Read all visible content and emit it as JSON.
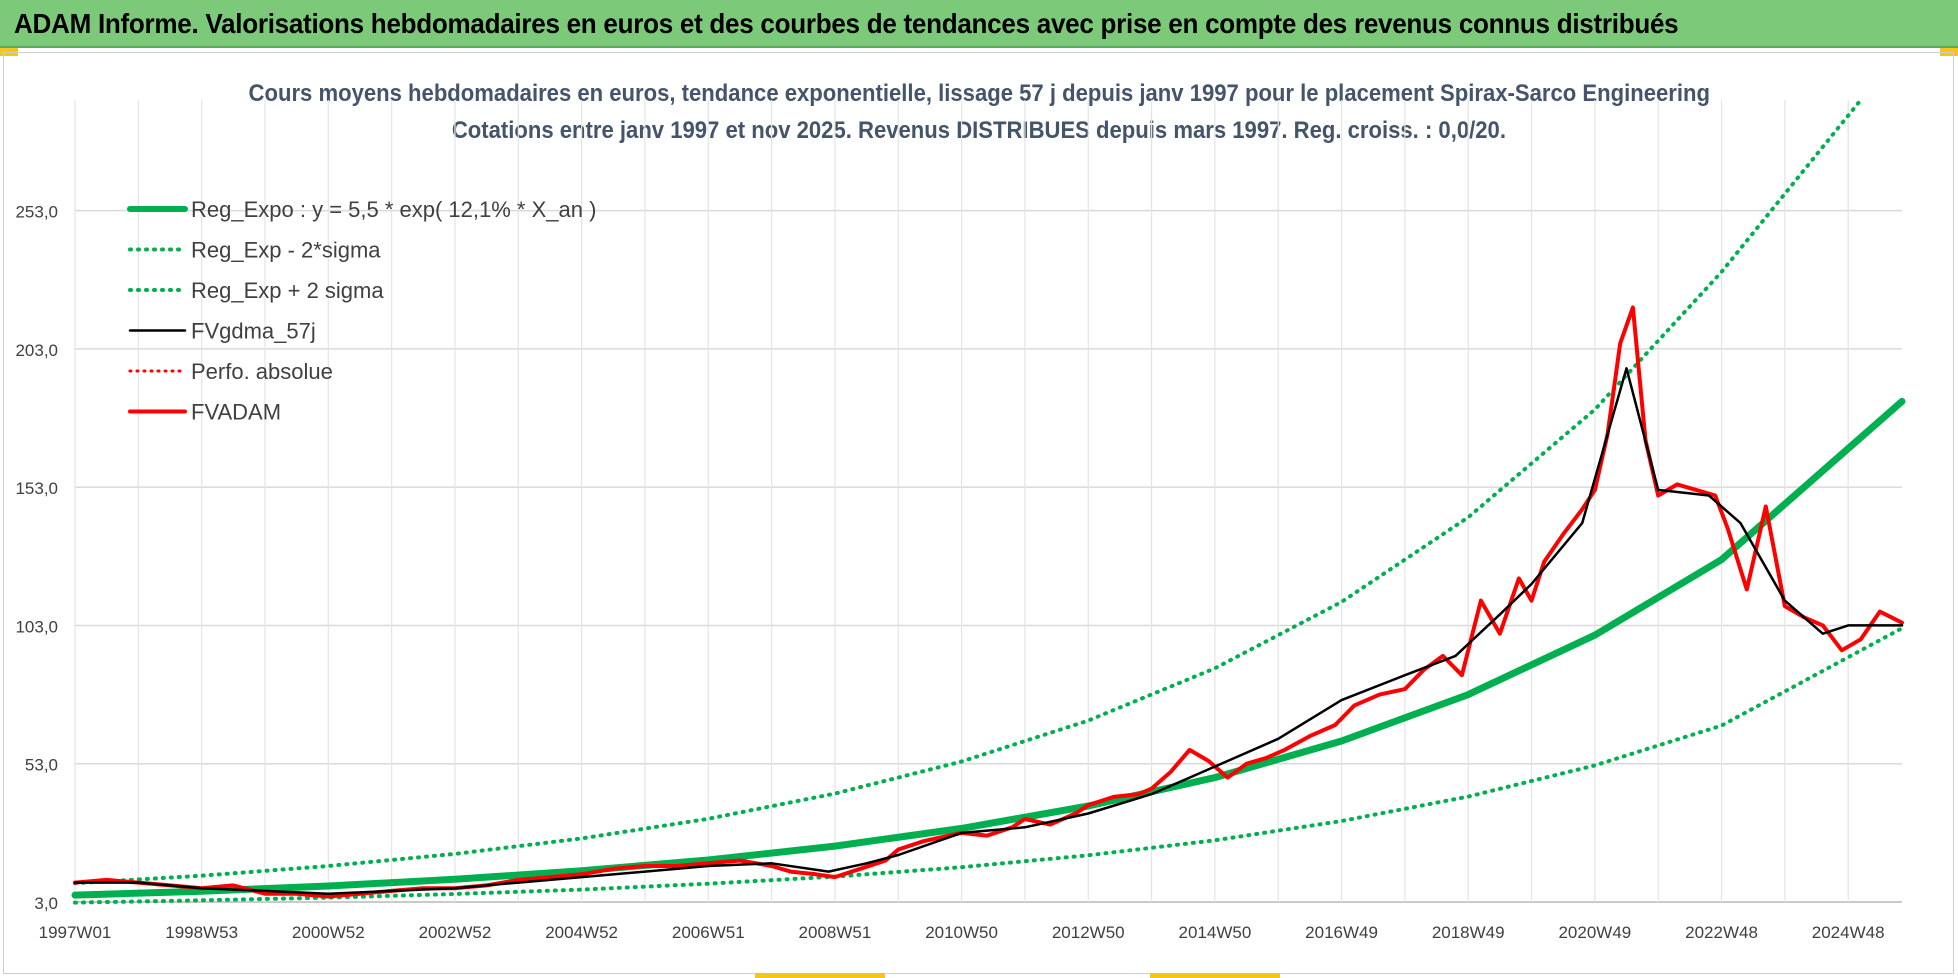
{
  "header": {
    "title": "ADAM Informe. Valorisations hebdomadaires en euros et des courbes de tendances avec prise en compte des revenus connus distribués"
  },
  "chart_data": {
    "type": "line",
    "title": "Cours moyens hebdomadaires en euros, tendance exponentielle, lissage 57 j depuis janv 1997 pour le placement Spirax-Sarco Engineering",
    "subtitle": "Cotations entre janv 1997 et nov 2025. Revenus DISTRIBUES depuis mars 1997. Reg. croiss. : 0,0/20.",
    "xlabel": "",
    "ylabel": "",
    "x_ticks": [
      "1997W01",
      "1998W53",
      "2000W52",
      "2002W52",
      "2004W52",
      "2006W51",
      "2008W51",
      "2010W50",
      "2012W50",
      "2014W50",
      "2016W49",
      "2018W49",
      "2020W49",
      "2022W48",
      "2024W48"
    ],
    "x_range": [
      1997.0,
      2025.85
    ],
    "y_ticks": [
      "3,0",
      "53,0",
      "103,0",
      "153,0",
      "203,0",
      "253,0"
    ],
    "ylim": [
      3,
      293
    ],
    "grid": true,
    "legend_position": "top-left",
    "colors": {
      "reg_expo": "#00b050",
      "band": "#00b050",
      "fvgdma": "#000000",
      "perfo": "#ff0000",
      "fvadam": "#ff0000"
    },
    "series": [
      {
        "name": "Reg_Expo : y = 5,5 * exp( 12,1% *  X_an )",
        "style": "solid-thick",
        "x": [
          1997,
          1999,
          2001,
          2003,
          2005,
          2007,
          2009,
          2011,
          2013,
          2015,
          2017,
          2019,
          2021,
          2023,
          2025.85
        ],
        "y": [
          5.5,
          6.9,
          8.8,
          11.2,
          14.3,
          18.2,
          23.2,
          29.6,
          37.7,
          48.0,
          61.2,
          78.0,
          99.5,
          126.8,
          184
        ]
      },
      {
        "name": "Reg_Exp - 2*sigma",
        "style": "dotted",
        "x": [
          1997,
          1999,
          2001,
          2003,
          2005,
          2007,
          2009,
          2011,
          2013,
          2015,
          2017,
          2019,
          2021,
          2023,
          2025.85
        ],
        "y": [
          2.8,
          3.6,
          4.6,
          5.9,
          7.5,
          9.6,
          12.2,
          15.6,
          19.9,
          25.3,
          32.3,
          41.1,
          52.4,
          66.8,
          102
        ]
      },
      {
        "name": "Reg_Exp + 2 sigma",
        "style": "dotted",
        "x": [
          1997,
          1999,
          2001,
          2003,
          2005,
          2007,
          2009,
          2011,
          2013,
          2015,
          2017,
          2019,
          2021,
          2023,
          2025.2
        ],
        "y": [
          9.8,
          12.5,
          16.0,
          20.4,
          26.0,
          33.1,
          42.2,
          53.8,
          68.6,
          87.5,
          111.5,
          142.1,
          181.1,
          230.8,
          293
        ]
      },
      {
        "name": "FVgdma_57j",
        "style": "solid-thin",
        "x": [
          1997,
          1998,
          1999,
          2000,
          2001,
          2002,
          2003,
          2004,
          2005,
          2006,
          2007,
          2008,
          2008.9,
          2009.5,
          2010,
          2011,
          2012,
          2013,
          2014,
          2014.6,
          2015.2,
          2016,
          2017,
          2018,
          2018.8,
          2019.5,
          2020,
          2020.8,
          2021.5,
          2022,
          2022.8,
          2023.3,
          2024,
          2024.6,
          2025,
          2025.85
        ],
        "y": [
          10,
          10,
          8,
          7,
          6,
          7,
          8,
          10,
          12,
          14,
          16,
          17,
          14,
          17,
          20,
          28,
          30,
          35,
          42,
          48,
          54,
          62,
          76,
          85,
          92,
          107,
          118,
          140,
          196,
          152,
          150,
          140,
          112,
          100,
          103,
          103
        ]
      },
      {
        "name": "Perfo. absolue",
        "style": "dotted",
        "x": [],
        "y": []
      },
      {
        "name": "FVADAM",
        "style": "solid-thick",
        "x": [
          1997,
          1997.5,
          1998,
          1998.5,
          1999,
          1999.5,
          2000,
          2000.5,
          2001,
          2001.5,
          2002,
          2002.5,
          2003,
          2003.5,
          2004,
          2004.5,
          2005,
          2005.5,
          2006,
          2006.5,
          2007,
          2007.5,
          2008,
          2008.3,
          2008.7,
          2009,
          2009.4,
          2009.8,
          2010,
          2010.4,
          2010.8,
          2011,
          2011.4,
          2011.8,
          2012,
          2012.4,
          2012.8,
          2013,
          2013.4,
          2013.8,
          2014,
          2014.3,
          2014.6,
          2014.9,
          2015.2,
          2015.5,
          2015.8,
          2016.1,
          2016.5,
          2016.9,
          2017.2,
          2017.6,
          2018,
          2018.3,
          2018.6,
          2018.9,
          2019.2,
          2019.5,
          2019.8,
          2020.0,
          2020.2,
          2020.5,
          2020.8,
          2021.0,
          2021.2,
          2021.4,
          2021.6,
          2021.8,
          2022.0,
          2022.3,
          2022.6,
          2022.9,
          2023.1,
          2023.4,
          2023.7,
          2024.0,
          2024.3,
          2024.6,
          2024.9,
          2025.2,
          2025.5,
          2025.85
        ],
        "y": [
          10,
          11,
          10,
          9,
          8,
          9,
          6,
          6,
          5,
          6,
          7,
          8,
          8,
          9,
          11,
          12,
          13,
          15,
          16,
          16,
          17,
          18,
          16,
          14,
          13,
          12,
          15,
          18,
          22,
          25,
          27,
          28,
          27,
          30,
          33,
          31,
          35,
          38,
          41,
          42,
          44,
          50,
          58,
          54,
          48,
          53,
          55,
          58,
          63,
          67,
          74,
          78,
          80,
          87,
          92,
          85,
          112,
          100,
          120,
          112,
          126,
          136,
          145,
          152,
          172,
          205,
          218,
          170,
          150,
          154,
          152,
          150,
          138,
          116,
          146,
          110,
          106,
          103,
          94,
          98,
          108,
          104
        ]
      }
    ]
  }
}
